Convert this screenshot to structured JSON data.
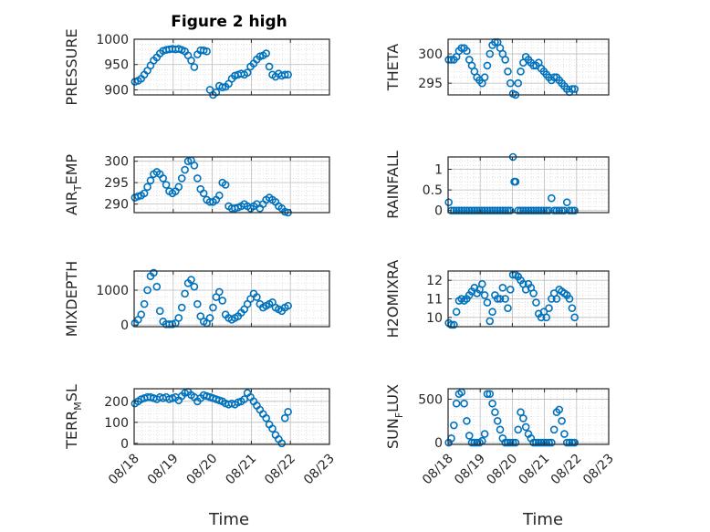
{
  "figure": {
    "title": "Figure 2 high",
    "marker_color": "#0072bd"
  },
  "chart_data": [
    {
      "type": "scatter",
      "ylabel": "PRESSURE",
      "ylim": [
        890,
        1000
      ],
      "yticks": [
        900,
        950,
        1000
      ],
      "xlim": [
        0,
        5
      ],
      "grid": true,
      "x": [
        0.02,
        0.1,
        0.18,
        0.26,
        0.34,
        0.42,
        0.5,
        0.58,
        0.66,
        0.74,
        0.82,
        0.9,
        0.98,
        1.06,
        1.14,
        1.22,
        1.3,
        1.38,
        1.46,
        1.54,
        1.62,
        1.7,
        1.78,
        1.86,
        1.94,
        2.02,
        2.1,
        2.18,
        2.26,
        2.34,
        2.42,
        2.5,
        2.58,
        2.66,
        2.74,
        2.82,
        2.9,
        2.98,
        3.06,
        3.14,
        3.22,
        3.3,
        3.38,
        3.46,
        3.54,
        3.62,
        3.7,
        3.78,
        3.86,
        3.94
      ],
      "y": [
        916,
        918,
        922,
        930,
        938,
        948,
        958,
        964,
        972,
        977,
        979,
        980,
        981,
        980,
        981,
        979,
        976,
        968,
        958,
        945,
        970,
        978,
        978,
        976,
        900,
        890,
        895,
        908,
        905,
        906,
        912,
        922,
        928,
        930,
        932,
        930,
        934,
        946,
        952,
        960,
        966,
        968,
        972,
        946,
        930,
        926,
        932,
        928,
        930,
        930
      ]
    },
    {
      "type": "scatter",
      "ylabel": "THETA",
      "ylim": [
        293,
        302.5
      ],
      "yticks": [
        295,
        300
      ],
      "xlim": [
        0,
        5
      ],
      "grid": true,
      "x": [
        0.02,
        0.1,
        0.18,
        0.26,
        0.34,
        0.42,
        0.5,
        0.58,
        0.66,
        0.74,
        0.82,
        0.9,
        0.98,
        1.06,
        1.14,
        1.22,
        1.3,
        1.38,
        1.46,
        1.54,
        1.62,
        1.7,
        1.78,
        1.86,
        1.94,
        2.02,
        2.1,
        2.18,
        2.26,
        2.34,
        2.42,
        2.5,
        2.58,
        2.66,
        2.74,
        2.82,
        2.9,
        2.98,
        3.06,
        3.14,
        3.22,
        3.3,
        3.38,
        3.46,
        3.54,
        3.62,
        3.7,
        3.78,
        3.86,
        3.94
      ],
      "y": [
        299,
        299,
        299,
        299.5,
        300.5,
        301,
        301,
        300.5,
        299,
        298,
        297,
        296,
        295.5,
        295,
        296,
        298,
        300,
        301.5,
        302,
        302,
        301,
        300,
        299,
        297,
        295,
        293.2,
        293,
        295,
        297,
        298.5,
        299.5,
        299,
        298.5,
        298,
        298,
        298.5,
        297.5,
        297,
        296.5,
        296,
        295.5,
        296,
        296,
        295.5,
        295,
        294.5,
        294,
        293.5,
        294,
        294
      ]
    },
    {
      "type": "scatter",
      "ylabel": "AIR_TEMP",
      "ylim": [
        288,
        301
      ],
      "yticks": [
        290,
        295,
        300
      ],
      "xlim": [
        0,
        5
      ],
      "grid": true,
      "x": [
        0.02,
        0.1,
        0.18,
        0.26,
        0.34,
        0.42,
        0.5,
        0.58,
        0.66,
        0.74,
        0.82,
        0.9,
        0.98,
        1.06,
        1.14,
        1.22,
        1.3,
        1.38,
        1.46,
        1.54,
        1.62,
        1.7,
        1.78,
        1.86,
        1.94,
        2.02,
        2.1,
        2.18,
        2.26,
        2.34,
        2.42,
        2.5,
        2.58,
        2.66,
        2.74,
        2.82,
        2.9,
        2.98,
        3.06,
        3.14,
        3.22,
        3.3,
        3.38,
        3.46,
        3.54,
        3.62,
        3.7,
        3.78,
        3.86,
        3.94
      ],
      "y": [
        291.5,
        291.8,
        292,
        292.5,
        294,
        295.5,
        297,
        297.5,
        297,
        296,
        294.5,
        293,
        292.5,
        293,
        294,
        296,
        298,
        300,
        300.2,
        299,
        296,
        293.5,
        292.5,
        291,
        290.5,
        290.5,
        291,
        292,
        295,
        294.5,
        289.5,
        289,
        289,
        289.2,
        289.5,
        290,
        289.5,
        289,
        289.5,
        290,
        289,
        290,
        291,
        291.5,
        291,
        290.5,
        289.5,
        289,
        288.2,
        288
      ]
    },
    {
      "type": "scatter",
      "ylabel": "RAINFALL",
      "ylim": [
        -0.05,
        1.3
      ],
      "yticks": [
        0,
        0.5,
        1
      ],
      "xlim": [
        0,
        5
      ],
      "grid": true,
      "x": [
        0.02,
        0.1,
        0.18,
        0.26,
        0.34,
        0.42,
        0.5,
        0.58,
        0.66,
        0.74,
        0.82,
        0.9,
        0.98,
        1.06,
        1.14,
        1.22,
        1.3,
        1.38,
        1.46,
        1.54,
        1.62,
        1.7,
        1.78,
        1.86,
        1.94,
        2.02,
        2.06,
        2.1,
        2.18,
        2.26,
        2.34,
        2.42,
        2.5,
        2.58,
        2.66,
        2.74,
        2.82,
        2.9,
        2.98,
        3.06,
        3.14,
        3.22,
        3.3,
        3.38,
        3.46,
        3.54,
        3.62,
        3.7,
        3.78,
        3.86,
        3.94
      ],
      "y": [
        0.2,
        0,
        0,
        0,
        0,
        0,
        0,
        0,
        0,
        0,
        0,
        0,
        0,
        0,
        0,
        0,
        0,
        0,
        0,
        0,
        0,
        0,
        0,
        0,
        0,
        1.3,
        0.7,
        0.7,
        0,
        0,
        0,
        0,
        0,
        0,
        0,
        0,
        0,
        0,
        0,
        0,
        0,
        0.3,
        0,
        0,
        0,
        0,
        0,
        0.2,
        0,
        0,
        0
      ]
    },
    {
      "type": "scatter",
      "ylabel": "MIXDEPTH",
      "ylim": [
        -50,
        1550
      ],
      "yticks": [
        0,
        1000
      ],
      "xlim": [
        0,
        5
      ],
      "grid": true,
      "x": [
        0.02,
        0.1,
        0.18,
        0.26,
        0.34,
        0.42,
        0.5,
        0.58,
        0.66,
        0.74,
        0.82,
        0.9,
        0.98,
        1.06,
        1.14,
        1.22,
        1.3,
        1.38,
        1.46,
        1.54,
        1.62,
        1.7,
        1.78,
        1.86,
        1.94,
        2.02,
        2.1,
        2.18,
        2.26,
        2.34,
        2.42,
        2.5,
        2.58,
        2.66,
        2.74,
        2.82,
        2.9,
        2.98,
        3.06,
        3.14,
        3.22,
        3.3,
        3.38,
        3.46,
        3.54,
        3.62,
        3.7,
        3.78,
        3.86,
        3.94
      ],
      "y": [
        50,
        150,
        300,
        600,
        1000,
        1400,
        1500,
        1100,
        400,
        100,
        20,
        20,
        20,
        50,
        200,
        500,
        900,
        1200,
        1300,
        1100,
        600,
        250,
        100,
        50,
        200,
        500,
        800,
        950,
        700,
        300,
        200,
        150,
        200,
        250,
        350,
        450,
        600,
        750,
        900,
        800,
        600,
        500,
        550,
        600,
        650,
        500,
        450,
        400,
        500,
        550
      ]
    },
    {
      "type": "scatter",
      "ylabel": "H2OMIXRA",
      "ylim": [
        9.5,
        12.5
      ],
      "yticks": [
        10,
        11,
        12
      ],
      "xlim": [
        0,
        5
      ],
      "grid": true,
      "x": [
        0.02,
        0.1,
        0.18,
        0.26,
        0.34,
        0.42,
        0.5,
        0.58,
        0.66,
        0.74,
        0.82,
        0.9,
        0.98,
        1.06,
        1.14,
        1.22,
        1.3,
        1.38,
        1.46,
        1.54,
        1.62,
        1.7,
        1.78,
        1.86,
        1.94,
        2.02,
        2.1,
        2.18,
        2.26,
        2.34,
        2.42,
        2.5,
        2.58,
        2.66,
        2.74,
        2.82,
        2.9,
        2.98,
        3.06,
        3.14,
        3.22,
        3.3,
        3.38,
        3.46,
        3.54,
        3.62,
        3.7,
        3.78,
        3.86,
        3.94
      ],
      "y": [
        9.7,
        9.6,
        9.6,
        10.3,
        10.9,
        11,
        10.9,
        11,
        11.2,
        11.4,
        11.6,
        11.3,
        11.5,
        11.8,
        11.2,
        10.8,
        9.8,
        10.3,
        11.2,
        11,
        11,
        11.6,
        11,
        10.5,
        11.5,
        12.3,
        12.3,
        12.2,
        12,
        11.8,
        11.5,
        11.8,
        11.6,
        11.3,
        10.8,
        10.2,
        10,
        10.3,
        10,
        10.5,
        11,
        11.3,
        11,
        11.5,
        11.4,
        11.3,
        11.2,
        11,
        10.5,
        10
      ]
    },
    {
      "type": "scatter",
      "ylabel": "TERR_MSL",
      "ylim": [
        -5,
        260
      ],
      "yticks": [
        0,
        100,
        200
      ],
      "xlim": [
        0,
        5
      ],
      "grid": true,
      "x": [
        0.02,
        0.1,
        0.18,
        0.26,
        0.34,
        0.42,
        0.5,
        0.58,
        0.66,
        0.74,
        0.82,
        0.9,
        0.98,
        1.06,
        1.14,
        1.22,
        1.3,
        1.38,
        1.46,
        1.54,
        1.62,
        1.7,
        1.78,
        1.86,
        1.94,
        2.02,
        2.1,
        2.18,
        2.26,
        2.34,
        2.42,
        2.5,
        2.58,
        2.66,
        2.74,
        2.82,
        2.9,
        2.98,
        3.06,
        3.14,
        3.22,
        3.3,
        3.38,
        3.46,
        3.54,
        3.62,
        3.7,
        3.78,
        3.86,
        3.94
      ],
      "y": [
        190,
        200,
        210,
        215,
        220,
        220,
        215,
        210,
        220,
        215,
        220,
        210,
        215,
        220,
        205,
        225,
        240,
        245,
        230,
        220,
        200,
        215,
        230,
        225,
        220,
        215,
        210,
        205,
        200,
        190,
        185,
        190,
        185,
        195,
        200,
        210,
        240,
        220,
        200,
        180,
        160,
        140,
        120,
        90,
        70,
        40,
        20,
        0,
        120,
        150
      ]
    },
    {
      "type": "scatter",
      "ylabel": "SUN_FLUX",
      "ylim": [
        -20,
        620
      ],
      "yticks": [
        0,
        500
      ],
      "xlim": [
        0,
        5
      ],
      "grid": true,
      "x": [
        0.02,
        0.1,
        0.18,
        0.26,
        0.34,
        0.42,
        0.5,
        0.58,
        0.66,
        0.74,
        0.82,
        0.9,
        0.98,
        1.06,
        1.14,
        1.22,
        1.3,
        1.38,
        1.46,
        1.54,
        1.62,
        1.7,
        1.78,
        1.86,
        1.94,
        2.02,
        2.1,
        2.18,
        2.26,
        2.34,
        2.42,
        2.5,
        2.58,
        2.66,
        2.74,
        2.82,
        2.9,
        2.98,
        3.06,
        3.14,
        3.22,
        3.3,
        3.38,
        3.46,
        3.54,
        3.62,
        3.7,
        3.78,
        3.86,
        3.94
      ],
      "y": [
        0,
        50,
        200,
        450,
        560,
        580,
        450,
        250,
        80,
        0,
        0,
        0,
        0,
        20,
        100,
        560,
        560,
        450,
        350,
        250,
        150,
        50,
        0,
        0,
        0,
        0,
        0,
        150,
        350,
        280,
        180,
        100,
        50,
        0,
        0,
        0,
        0,
        0,
        0,
        0,
        0,
        150,
        350,
        380,
        250,
        100,
        0,
        0,
        0,
        0
      ]
    }
  ],
  "axes": {
    "x_tick_labels": [
      "08/18",
      "08/19",
      "08/20",
      "08/21",
      "08/22",
      "08/23"
    ],
    "xlabel": "Time"
  }
}
